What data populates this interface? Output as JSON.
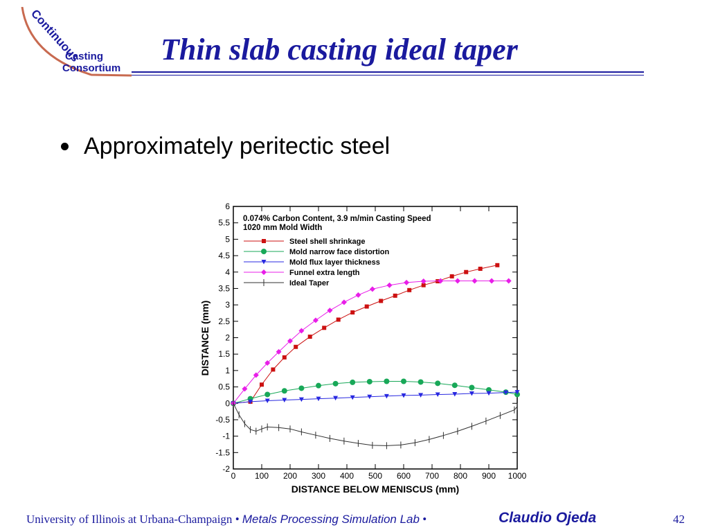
{
  "logo": {
    "lines": [
      "Continuous",
      "Casting",
      "Consortium"
    ],
    "arc_color": "#c86a50",
    "text_color": "#1a1a9e"
  },
  "title": "Thin slab casting ideal taper",
  "bullet": "Approximately peritectic steel",
  "colors": {
    "title": "#1a1a9e"
  },
  "chart_data": {
    "type": "line",
    "annotation": [
      "0.074% Carbon Content, 3.9 m/min Casting Speed",
      "1020 mm Mold Width"
    ],
    "xlabel": "DISTANCE BELOW MENISCUS (mm)",
    "ylabel": "DISTANCE (mm)",
    "xlim": [
      0,
      1000
    ],
    "ylim": [
      -2,
      6
    ],
    "xticks": [
      "0",
      "100",
      "200",
      "300",
      "400",
      "500",
      "600",
      "700",
      "800",
      "900",
      "1000"
    ],
    "yticks": [
      "-2",
      "-1.5",
      "-1",
      "-0.5",
      "0",
      "0.5",
      "1",
      "1.5",
      "2",
      "2.5",
      "3",
      "3.5",
      "4",
      "4.5",
      "5",
      "5.5",
      "6"
    ],
    "legend_position": "top-left",
    "series": [
      {
        "name": "Steel shell shrinkage",
        "color": "#cc1111",
        "marker": "square",
        "points": [
          [
            0,
            0
          ],
          [
            60,
            0.05
          ],
          [
            100,
            0.57
          ],
          [
            140,
            1.03
          ],
          [
            180,
            1.4
          ],
          [
            220,
            1.72
          ],
          [
            270,
            2.03
          ],
          [
            320,
            2.3
          ],
          [
            370,
            2.55
          ],
          [
            420,
            2.77
          ],
          [
            470,
            2.95
          ],
          [
            520,
            3.12
          ],
          [
            570,
            3.28
          ],
          [
            620,
            3.45
          ],
          [
            670,
            3.6
          ],
          [
            720,
            3.72
          ],
          [
            770,
            3.87
          ],
          [
            820,
            4.0
          ],
          [
            870,
            4.1
          ],
          [
            930,
            4.21
          ]
        ]
      },
      {
        "name": "Mold narrow face distortion",
        "color": "#18a858",
        "marker": "circle",
        "points": [
          [
            0,
            0
          ],
          [
            60,
            0.14
          ],
          [
            120,
            0.27
          ],
          [
            180,
            0.38
          ],
          [
            240,
            0.46
          ],
          [
            300,
            0.54
          ],
          [
            360,
            0.6
          ],
          [
            420,
            0.64
          ],
          [
            480,
            0.66
          ],
          [
            540,
            0.67
          ],
          [
            600,
            0.67
          ],
          [
            660,
            0.65
          ],
          [
            720,
            0.61
          ],
          [
            780,
            0.55
          ],
          [
            840,
            0.48
          ],
          [
            900,
            0.41
          ],
          [
            960,
            0.34
          ],
          [
            1000,
            0.27
          ]
        ]
      },
      {
        "name": "Mold flux layer thickness",
        "color": "#2828e0",
        "marker": "triangle",
        "points": [
          [
            0,
            0
          ],
          [
            60,
            0.05
          ],
          [
            120,
            0.08
          ],
          [
            180,
            0.1
          ],
          [
            240,
            0.12
          ],
          [
            300,
            0.14
          ],
          [
            360,
            0.16
          ],
          [
            420,
            0.18
          ],
          [
            480,
            0.2
          ],
          [
            540,
            0.22
          ],
          [
            600,
            0.24
          ],
          [
            660,
            0.25
          ],
          [
            720,
            0.27
          ],
          [
            780,
            0.28
          ],
          [
            840,
            0.3
          ],
          [
            900,
            0.31
          ],
          [
            960,
            0.33
          ],
          [
            1000,
            0.34
          ]
        ]
      },
      {
        "name": "Funnel extra length",
        "color": "#e81ee8",
        "marker": "diamond",
        "points": [
          [
            0,
            0
          ],
          [
            40,
            0.44
          ],
          [
            80,
            0.86
          ],
          [
            120,
            1.23
          ],
          [
            160,
            1.57
          ],
          [
            200,
            1.9
          ],
          [
            240,
            2.21
          ],
          [
            290,
            2.53
          ],
          [
            340,
            2.83
          ],
          [
            390,
            3.08
          ],
          [
            440,
            3.3
          ],
          [
            490,
            3.48
          ],
          [
            550,
            3.6
          ],
          [
            610,
            3.68
          ],
          [
            670,
            3.72
          ],
          [
            730,
            3.73
          ],
          [
            790,
            3.73
          ],
          [
            850,
            3.73
          ],
          [
            910,
            3.73
          ],
          [
            970,
            3.73
          ]
        ]
      },
      {
        "name": "Ideal Taper",
        "color": "#303030",
        "marker": "tick",
        "points": [
          [
            0,
            0
          ],
          [
            20,
            -0.35
          ],
          [
            40,
            -0.62
          ],
          [
            60,
            -0.8
          ],
          [
            80,
            -0.85
          ],
          [
            100,
            -0.78
          ],
          [
            120,
            -0.72
          ],
          [
            160,
            -0.74
          ],
          [
            200,
            -0.78
          ],
          [
            240,
            -0.87
          ],
          [
            290,
            -0.97
          ],
          [
            340,
            -1.07
          ],
          [
            390,
            -1.15
          ],
          [
            440,
            -1.22
          ],
          [
            490,
            -1.28
          ],
          [
            540,
            -1.29
          ],
          [
            590,
            -1.27
          ],
          [
            640,
            -1.2
          ],
          [
            690,
            -1.1
          ],
          [
            740,
            -0.98
          ],
          [
            790,
            -0.85
          ],
          [
            840,
            -0.7
          ],
          [
            890,
            -0.54
          ],
          [
            940,
            -0.37
          ],
          [
            990,
            -0.2
          ],
          [
            1000,
            -0.1
          ]
        ]
      }
    ]
  },
  "footer": {
    "university": "University of Illinois at Urbana-Champaign",
    "sep1": " • ",
    "lab": "Metals Processing Simulation Lab",
    "sep2": "  • ",
    "name": "Claudio Ojeda",
    "page": "42"
  }
}
